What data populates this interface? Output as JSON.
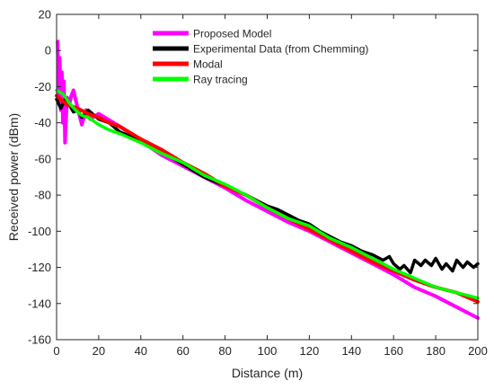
{
  "chart_data": {
    "type": "line",
    "title": "",
    "xlabel": "Distance (m)",
    "ylabel": "Received power (dBm)",
    "xlim": [
      0,
      200
    ],
    "ylim": [
      -160,
      20
    ],
    "xticks": [
      0,
      20,
      40,
      60,
      80,
      100,
      120,
      140,
      160,
      180,
      200
    ],
    "yticks": [
      20,
      0,
      -20,
      -40,
      -60,
      -80,
      -100,
      -120,
      -140,
      -160
    ],
    "grid": false,
    "legend_position": "top-center",
    "series": [
      {
        "name": "Proposed Model",
        "color": "#ff00ff",
        "x": [
          0.5,
          1,
          1.5,
          2,
          2.5,
          3,
          3.5,
          4,
          5,
          6,
          7,
          8,
          10,
          12,
          14,
          16,
          20,
          30,
          40,
          50,
          60,
          70,
          80,
          90,
          100,
          110,
          120,
          130,
          140,
          150,
          160,
          170,
          180,
          190,
          200
        ],
        "y": [
          5,
          -28,
          -4,
          -33,
          -12,
          -40,
          -17,
          -51,
          -26,
          -30,
          -25,
          -22,
          -32,
          -41,
          -33,
          -38,
          -35,
          -42,
          -50,
          -58,
          -64,
          -70,
          -76,
          -83,
          -89,
          -95,
          -100,
          -106,
          -112,
          -118,
          -124,
          -131,
          -136,
          -142,
          -148
        ]
      },
      {
        "name": "Experimental Data (from Chemming)",
        "color": "#000000",
        "x": [
          0,
          2,
          4,
          6,
          8,
          10,
          12,
          15,
          20,
          25,
          30,
          40,
          50,
          60,
          70,
          80,
          90,
          100,
          105,
          110,
          115,
          120,
          125,
          130,
          135,
          140,
          145,
          150,
          155,
          158,
          160,
          163,
          165,
          168,
          170,
          173,
          175,
          178,
          180,
          183,
          185,
          188,
          190,
          193,
          195,
          198,
          200
        ],
        "y": [
          -27,
          -32,
          -27,
          -30,
          -34,
          -33,
          -37,
          -33,
          -38,
          -40,
          -45,
          -50,
          -56,
          -63,
          -70,
          -75,
          -80,
          -86,
          -88,
          -91,
          -94,
          -96,
          -100,
          -103,
          -106,
          -108,
          -111,
          -113,
          -116,
          -114,
          -118,
          -121,
          -119,
          -123,
          -116,
          -119,
          -116,
          -119,
          -115,
          -121,
          -118,
          -122,
          -116,
          -120,
          -117,
          -120,
          -118
        ]
      },
      {
        "name": "Modal",
        "color": "#ff0000",
        "x": [
          0,
          5,
          10,
          15,
          20,
          25,
          30,
          40,
          50,
          60,
          70,
          80,
          90,
          100,
          110,
          120,
          130,
          140,
          150,
          160,
          170,
          180,
          190,
          200
        ],
        "y": [
          -25,
          -30,
          -32,
          -35,
          -37,
          -40,
          -42,
          -49,
          -55,
          -62,
          -68,
          -75,
          -80,
          -87,
          -93,
          -99,
          -105,
          -111,
          -117,
          -122,
          -127,
          -131,
          -134,
          -139
        ]
      },
      {
        "name": "Ray tracing",
        "color": "#00ff00",
        "x": [
          0,
          3,
          6,
          9,
          12,
          15,
          20,
          25,
          30,
          40,
          50,
          60,
          70,
          80,
          90,
          100,
          110,
          120,
          130,
          140,
          150,
          160,
          170,
          180,
          190,
          200
        ],
        "y": [
          -22,
          -24,
          -29,
          -33,
          -36,
          -37,
          -41,
          -44,
          -46,
          -51,
          -57,
          -62,
          -69,
          -74,
          -80,
          -87,
          -93,
          -97,
          -104,
          -109,
          -115,
          -121,
          -126,
          -131,
          -134,
          -137
        ]
      }
    ]
  }
}
